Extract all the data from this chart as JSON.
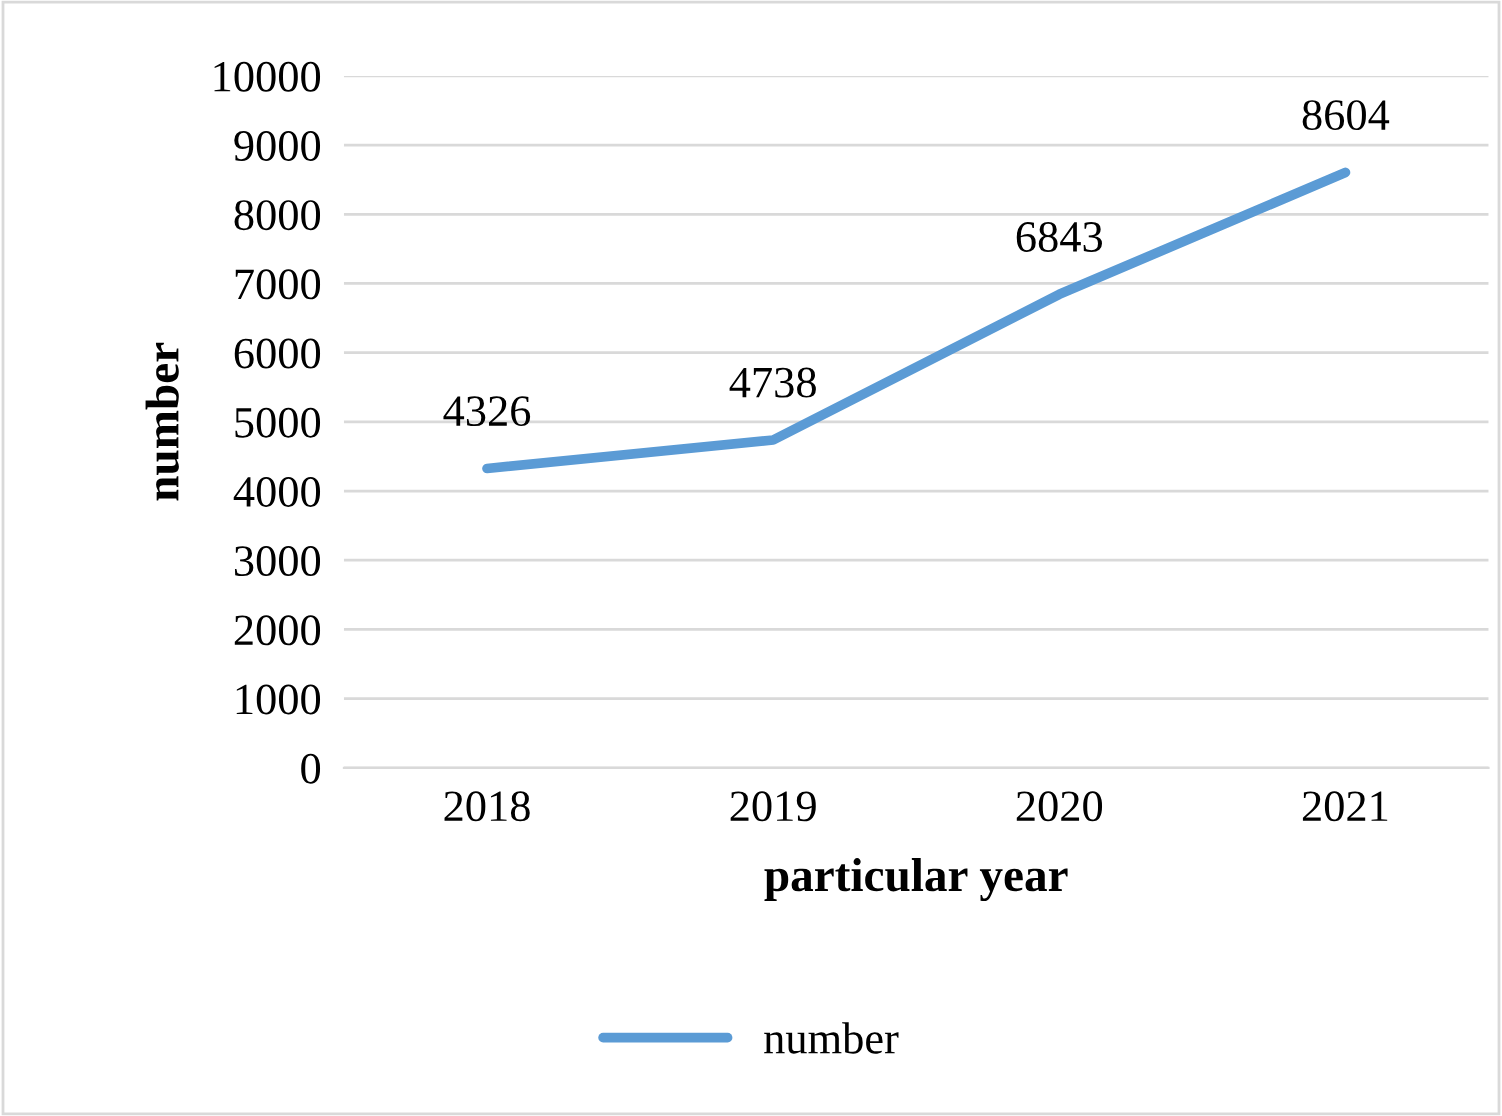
{
  "chart_data": {
    "type": "line",
    "xlabel": "particular year",
    "ylabel": "number",
    "categories": [
      "2018",
      "2019",
      "2020",
      "2021"
    ],
    "series": [
      {
        "name": "number",
        "color": "#5b9bd5",
        "values": [
          4326,
          4738,
          6843,
          8604
        ]
      }
    ],
    "ylim": [
      0,
      10000
    ],
    "yticks": [
      0,
      1000,
      2000,
      3000,
      4000,
      5000,
      6000,
      7000,
      8000,
      9000,
      10000
    ],
    "grid": "y",
    "legend": "bottom",
    "data_labels": true,
    "marker": "none",
    "line_style": "solid"
  }
}
